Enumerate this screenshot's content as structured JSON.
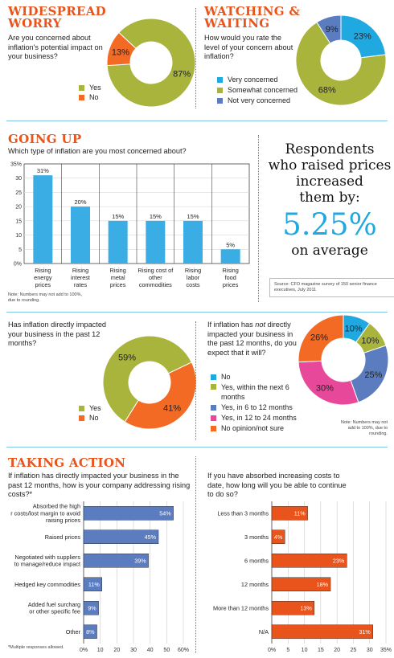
{
  "concern": {
    "title": "WIDESPREAD WORRY",
    "question": "Are you concerned about inflation's potential impact on your business?",
    "chart_data": {
      "type": "pie",
      "donut": true,
      "slices": [
        {
          "label": "Yes",
          "value": 87,
          "color": "#a8b43c"
        },
        {
          "label": "No",
          "value": 13,
          "color": "#f26a24"
        }
      ]
    }
  },
  "waiting": {
    "title": "WATCHING & WAITING",
    "question": "How would you rate the level of your concern about inflation?",
    "chart_data": {
      "type": "pie",
      "donut": true,
      "slices": [
        {
          "label": "Very concerned",
          "value": 23,
          "color": "#20a8e0"
        },
        {
          "label": "Somewhat concerned",
          "value": 68,
          "color": "#a8b43c"
        },
        {
          "label": "Not very concerned",
          "value": 9,
          "color": "#5b7dc0"
        }
      ]
    }
  },
  "going_up": {
    "title": "GOING UP",
    "question": "Which type of inflation are you most concerned about?",
    "note": "Note: Numbers may not add to 100%, due to rounding.",
    "chart_data": {
      "type": "bar",
      "ylim": [
        0,
        35
      ],
      "yticks": [
        "0%",
        "5",
        "10",
        "15",
        "20",
        "25",
        "30",
        "35%"
      ],
      "categories": [
        "Rising energy prices",
        "Rising interest rates",
        "Rising metal prices",
        "Rising cost of other commodities",
        "Rising labor costs",
        "Rising food prices"
      ],
      "values": [
        31,
        20,
        15,
        15,
        15,
        5
      ],
      "value_labels": [
        "31%",
        "20%",
        "15%",
        "15%",
        "15%",
        "5%"
      ],
      "color": "#3aaee4"
    }
  },
  "callout": {
    "line1": "Respondents",
    "line2": "who raised prices",
    "line3": "increased",
    "line4": "them by:",
    "value": "5.25%",
    "line5": "on average",
    "source": "Source: CFO magazine survey of 150 senior finance executives, July 2011"
  },
  "impacted": {
    "question": "Has inflation directly impacted your business in the past 12 months?",
    "chart_data": {
      "type": "pie",
      "donut": true,
      "slices": [
        {
          "label": "Yes",
          "value": 59,
          "color": "#a8b43c"
        },
        {
          "label": "No",
          "value": 41,
          "color": "#f26a24"
        }
      ]
    }
  },
  "expect": {
    "q1": "If inflation has ",
    "q_em": "not",
    "q2": " directly impacted your business in the past 12 months, do you expect that it will?",
    "note": "Note: Numbers may not add to 100%, due to rounding.",
    "chart_data": {
      "type": "pie",
      "donut": true,
      "slices": [
        {
          "label": "No",
          "value": 10,
          "color": "#20a8e0"
        },
        {
          "label": "Yes, within the next 6 months",
          "value": 10,
          "color": "#a8b43c"
        },
        {
          "label": "Yes, in 6 to 12 months",
          "value": 25,
          "color": "#5b7dc0"
        },
        {
          "label": "Yes, in 12 to 24 months",
          "value": 30,
          "color": "#e8489a"
        },
        {
          "label": "No opinion/not sure",
          "value": 26,
          "color": "#f26a24"
        }
      ]
    }
  },
  "action": {
    "title": "TAKING ACTION",
    "question": "If inflation has directly impacted your business in the past 12 months, how is your company addressing rising costs?*",
    "note": "*Multiple responses allowed.",
    "chart_data": {
      "type": "bar",
      "orientation": "horizontal",
      "xlim": [
        0,
        60
      ],
      "xticks": [
        "0%",
        "10",
        "20",
        "30",
        "40",
        "50",
        "60%"
      ],
      "categories": [
        "Absorbed the higher costs/lost margin to avoid raising prices",
        "Raised prices",
        "Negotiated with suppliers to manage/reduce impact",
        "Hedged key commodities",
        "Added fuel surcharge or other specific fee",
        "Other"
      ],
      "values": [
        54,
        45,
        39,
        11,
        9,
        8
      ],
      "value_labels": [
        "54%",
        "45%",
        "39%",
        "11%",
        "9%",
        "8%"
      ],
      "color": "#5b7dc0"
    }
  },
  "absorb": {
    "question": "If you have absorbed increasing costs to date, how long will you be able to continue to do so?",
    "chart_data": {
      "type": "bar",
      "orientation": "horizontal",
      "xlim": [
        0,
        35
      ],
      "xticks": [
        "0%",
        "5",
        "10",
        "15",
        "20",
        "25",
        "30",
        "35%"
      ],
      "categories": [
        "Less than 3 months",
        "3 months",
        "6 months",
        "12 months",
        "More than 12 months",
        "N/A"
      ],
      "values": [
        11,
        4,
        23,
        18,
        13,
        31
      ],
      "value_labels": [
        "11%",
        "4%",
        "23%",
        "18%",
        "13%",
        "31%"
      ],
      "color": "#e8541c"
    }
  }
}
